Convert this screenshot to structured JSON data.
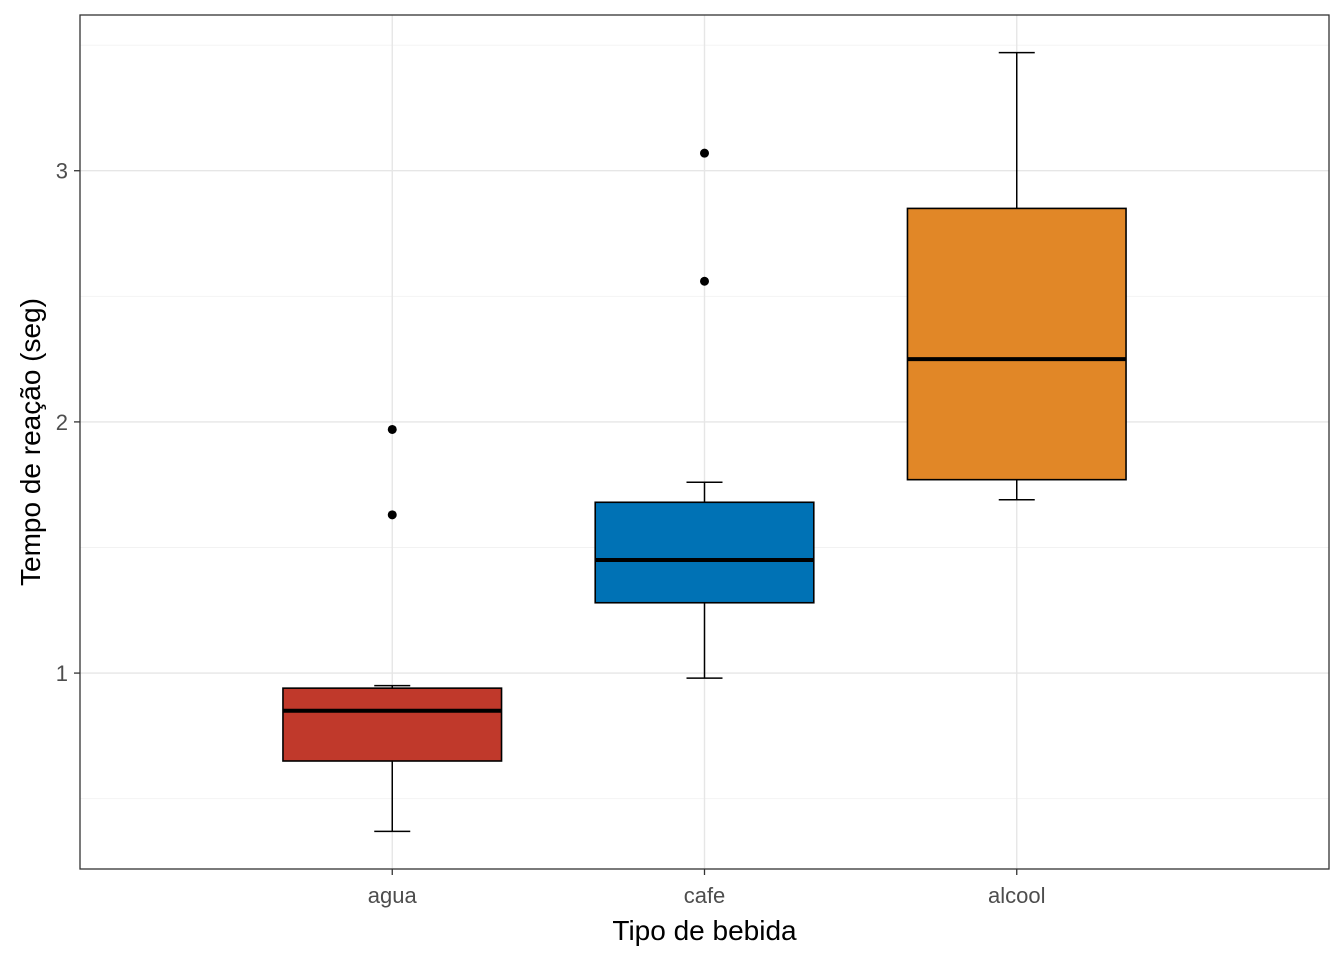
{
  "chart_data": {
    "type": "boxplot",
    "title": "",
    "xlabel": "Tipo de bebida",
    "ylabel": "Tempo de reação (seg)",
    "categories": [
      "agua",
      "cafe",
      "alcool"
    ],
    "colors": [
      "#C0392B",
      "#0072B5",
      "#E18727"
    ],
    "ylim": [
      0.22,
      3.62
    ],
    "yticks": [
      1,
      2,
      3
    ],
    "ytick_labels": [
      "1",
      "2",
      "3"
    ],
    "boxes": [
      {
        "category": "agua",
        "whisker_low": 0.37,
        "q1": 0.65,
        "median": 0.85,
        "q3": 0.94,
        "whisker_high": 0.95,
        "outliers": [
          1.63,
          1.97
        ]
      },
      {
        "category": "cafe",
        "whisker_low": 0.98,
        "q1": 1.28,
        "median": 1.45,
        "q3": 1.68,
        "whisker_high": 1.76,
        "outliers": [
          2.56,
          3.07
        ]
      },
      {
        "category": "alcool",
        "whisker_low": 1.69,
        "q1": 1.77,
        "median": 2.25,
        "q3": 2.85,
        "whisker_high": 3.47,
        "outliers": []
      }
    ],
    "grid": true,
    "legend": "none"
  }
}
